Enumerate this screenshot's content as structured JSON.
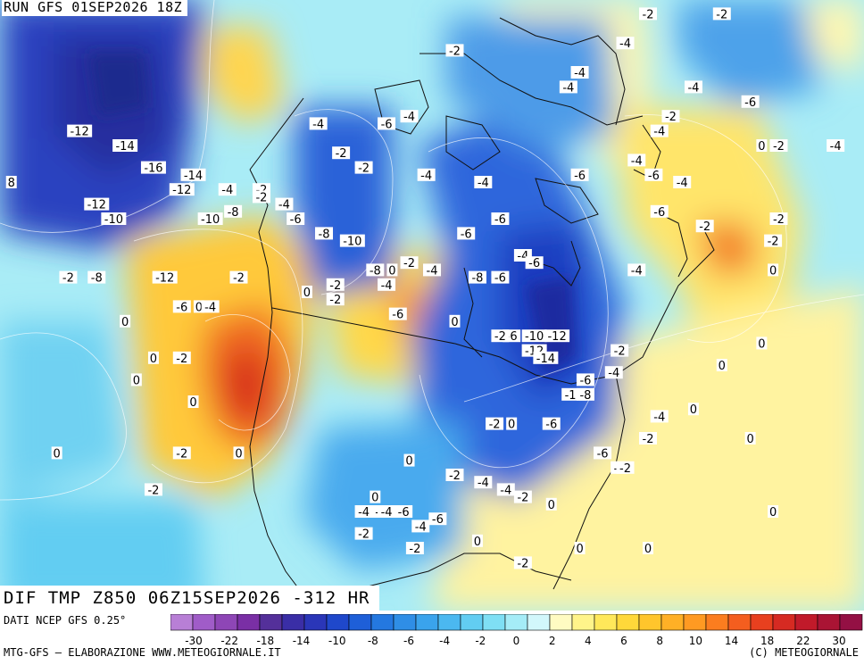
{
  "header": {
    "run_label": "RUN GFS 01SEP2026 18Z"
  },
  "map": {
    "field_label": "DIF TMP Z850 06Z15SEP2026 -312 HR",
    "labels": [
      {
        "t": "-12",
        "lon": -158,
        "lat": 62
      },
      {
        "t": "-14",
        "lon": -150,
        "lat": 60
      },
      {
        "t": "-16",
        "lon": -145,
        "lat": 57
      },
      {
        "t": "-14",
        "lon": -138,
        "lat": 56
      },
      {
        "t": "-12",
        "lon": -140,
        "lat": 54
      },
      {
        "t": "-4",
        "lon": -132,
        "lat": 54
      },
      {
        "t": "-2",
        "lon": -126,
        "lat": 54
      },
      {
        "t": "-12",
        "lon": -155,
        "lat": 52
      },
      {
        "t": "-10",
        "lon": -152,
        "lat": 50
      },
      {
        "t": "-10",
        "lon": -135,
        "lat": 50
      },
      {
        "t": "-8",
        "lon": -131,
        "lat": 51
      },
      {
        "t": "8",
        "lon": -170,
        "lat": 55
      },
      {
        "t": "-2",
        "lon": -160,
        "lat": 42
      },
      {
        "t": "-8",
        "lon": -155,
        "lat": 42
      },
      {
        "t": "-12",
        "lon": -143,
        "lat": 42
      },
      {
        "t": "-2",
        "lon": -130,
        "lat": 42
      },
      {
        "t": "-6",
        "lon": -140,
        "lat": 38
      },
      {
        "t": "0",
        "lon": -137,
        "lat": 38
      },
      {
        "t": "-4",
        "lon": -135,
        "lat": 38
      },
      {
        "t": "0",
        "lon": -150,
        "lat": 36
      },
      {
        "t": "0",
        "lon": -145,
        "lat": 31
      },
      {
        "t": "-2",
        "lon": -140,
        "lat": 31
      },
      {
        "t": "0",
        "lon": -148,
        "lat": 28
      },
      {
        "t": "0",
        "lon": -138,
        "lat": 25
      },
      {
        "t": "-2",
        "lon": -140,
        "lat": 18
      },
      {
        "t": "0",
        "lon": -130,
        "lat": 18
      },
      {
        "t": "0",
        "lon": -162,
        "lat": 18
      },
      {
        "t": "-2",
        "lon": -145,
        "lat": 13
      },
      {
        "t": "-4",
        "lon": -116,
        "lat": 63
      },
      {
        "t": "-6",
        "lon": -104,
        "lat": 63
      },
      {
        "t": "-4",
        "lon": -100,
        "lat": 64
      },
      {
        "t": "-2",
        "lon": -92,
        "lat": 73
      },
      {
        "t": "-4",
        "lon": -70,
        "lat": 70
      },
      {
        "t": "-4",
        "lon": -62,
        "lat": 74
      },
      {
        "t": "-2",
        "lon": -58,
        "lat": 78
      },
      {
        "t": "-2",
        "lon": -45,
        "lat": 78
      },
      {
        "t": "-4",
        "lon": -50,
        "lat": 68
      },
      {
        "t": "-6",
        "lon": -40,
        "lat": 66
      },
      {
        "t": "-2",
        "lon": -54,
        "lat": 64
      },
      {
        "t": "-4",
        "lon": -56,
        "lat": 62
      },
      {
        "t": "0",
        "lon": -38,
        "lat": 60
      },
      {
        "t": "-2",
        "lon": -35,
        "lat": 60
      },
      {
        "t": "-4",
        "lon": -25,
        "lat": 60
      },
      {
        "t": "-4",
        "lon": -72,
        "lat": 68
      },
      {
        "t": "-4",
        "lon": -60,
        "lat": 58
      },
      {
        "t": "-6",
        "lon": -70,
        "lat": 56
      },
      {
        "t": "-6",
        "lon": -57,
        "lat": 56
      },
      {
        "t": "-4",
        "lon": -52,
        "lat": 55
      },
      {
        "t": "-6",
        "lon": -56,
        "lat": 51
      },
      {
        "t": "-2",
        "lon": -48,
        "lat": 49
      },
      {
        "t": "-2",
        "lon": -35,
        "lat": 50
      },
      {
        "t": "-2",
        "lon": -36,
        "lat": 47
      },
      {
        "t": "0",
        "lon": -36,
        "lat": 43
      },
      {
        "t": "-2",
        "lon": -126,
        "lat": 53
      },
      {
        "t": "-4",
        "lon": -122,
        "lat": 52
      },
      {
        "t": "-2",
        "lon": -112,
        "lat": 59
      },
      {
        "t": "-2",
        "lon": -108,
        "lat": 57
      },
      {
        "t": "-4",
        "lon": -97,
        "lat": 56
      },
      {
        "t": "-4",
        "lon": -87,
        "lat": 55
      },
      {
        "t": "-6",
        "lon": -120,
        "lat": 50
      },
      {
        "t": "-8",
        "lon": -115,
        "lat": 48
      },
      {
        "t": "-10",
        "lon": -110,
        "lat": 47
      },
      {
        "t": "-6",
        "lon": -84,
        "lat": 50
      },
      {
        "t": "-6",
        "lon": -90,
        "lat": 48
      },
      {
        "t": "-4",
        "lon": -80,
        "lat": 45
      },
      {
        "t": "-6",
        "lon": -78,
        "lat": 44
      },
      {
        "t": "-2",
        "lon": -100,
        "lat": 44
      },
      {
        "t": "-4",
        "lon": -96,
        "lat": 43
      },
      {
        "t": "-8",
        "lon": -106,
        "lat": 43
      },
      {
        "t": "0",
        "lon": -103,
        "lat": 43
      },
      {
        "t": "-8",
        "lon": -88,
        "lat": 42
      },
      {
        "t": "-6",
        "lon": -84,
        "lat": 42
      },
      {
        "t": "-4",
        "lon": -60,
        "lat": 43
      },
      {
        "t": "-2",
        "lon": -113,
        "lat": 41
      },
      {
        "t": "-2",
        "lon": -113,
        "lat": 39
      },
      {
        "t": "0",
        "lon": -118,
        "lat": 40
      },
      {
        "t": "-4",
        "lon": -104,
        "lat": 41
      },
      {
        "t": "-6",
        "lon": -102,
        "lat": 37
      },
      {
        "t": "0",
        "lon": -92,
        "lat": 36
      },
      {
        "t": "-12",
        "lon": -74,
        "lat": 34
      },
      {
        "t": "-10",
        "lon": -78,
        "lat": 34
      },
      {
        "t": "-6",
        "lon": -82,
        "lat": 34
      },
      {
        "t": "-2",
        "lon": -84,
        "lat": 34
      },
      {
        "t": "-12",
        "lon": -78,
        "lat": 32
      },
      {
        "t": "-14",
        "lon": -76,
        "lat": 31
      },
      {
        "t": "-2",
        "lon": -63,
        "lat": 32
      },
      {
        "t": "-4",
        "lon": -64,
        "lat": 29
      },
      {
        "t": "-6",
        "lon": -69,
        "lat": 28
      },
      {
        "t": "-10",
        "lon": -71,
        "lat": 26
      },
      {
        "t": "-8",
        "lon": -69,
        "lat": 26
      },
      {
        "t": "-4",
        "lon": -56,
        "lat": 23
      },
      {
        "t": "-2",
        "lon": -85,
        "lat": 22
      },
      {
        "t": "0",
        "lon": -82,
        "lat": 22
      },
      {
        "t": "-6",
        "lon": -75,
        "lat": 22
      },
      {
        "t": "-6",
        "lon": -66,
        "lat": 18
      },
      {
        "t": "-4",
        "lon": -63,
        "lat": 16
      },
      {
        "t": "-2",
        "lon": -62,
        "lat": 16
      },
      {
        "t": "0",
        "lon": -100,
        "lat": 17
      },
      {
        "t": "-2",
        "lon": -92,
        "lat": 15
      },
      {
        "t": "-4",
        "lon": -87,
        "lat": 14
      },
      {
        "t": "-4",
        "lon": -83,
        "lat": 13
      },
      {
        "t": "-2",
        "lon": -80,
        "lat": 12
      },
      {
        "t": "0",
        "lon": -75,
        "lat": 11
      },
      {
        "t": "-4",
        "lon": -108,
        "lat": 10
      },
      {
        "t": "-2",
        "lon": -105,
        "lat": 10
      },
      {
        "t": "-6",
        "lon": -101,
        "lat": 10
      },
      {
        "t": "-4",
        "lon": -104,
        "lat": 10
      },
      {
        "t": "0",
        "lon": -106,
        "lat": 12
      },
      {
        "t": "-6",
        "lon": -95,
        "lat": 9
      },
      {
        "t": "-4",
        "lon": -98,
        "lat": 8
      },
      {
        "t": "-2",
        "lon": -108,
        "lat": 7
      },
      {
        "t": "-2",
        "lon": -99,
        "lat": 5
      },
      {
        "t": "0",
        "lon": -88,
        "lat": 6
      },
      {
        "t": "0",
        "lon": -70,
        "lat": 5
      },
      {
        "t": "-2",
        "lon": -80,
        "lat": 3
      },
      {
        "t": "0",
        "lon": -58,
        "lat": 5
      },
      {
        "t": "0",
        "lon": -45,
        "lat": 30
      },
      {
        "t": "0",
        "lon": -38,
        "lat": 33
      },
      {
        "t": "0",
        "lon": -40,
        "lat": 20
      },
      {
        "t": "0",
        "lon": -50,
        "lat": 24
      },
      {
        "t": "0",
        "lon": -36,
        "lat": 10
      },
      {
        "t": "-2",
        "lon": -58,
        "lat": 20
      }
    ]
  },
  "colorbar": {
    "colors": [
      "#b87fd6",
      "#a05cc8",
      "#8e46b6",
      "#7a2fa5",
      "#54309a",
      "#3a2ea6",
      "#2a36b8",
      "#1f48cb",
      "#1e5fd8",
      "#2478e0",
      "#2f8ee6",
      "#3aa3ec",
      "#4bb8f0",
      "#62cdf2",
      "#7fdff4",
      "#a5ecf7",
      "#d2f7fb",
      "#fffbc2",
      "#fff48a",
      "#ffe85a",
      "#ffd83a",
      "#ffc52c",
      "#ffb026",
      "#ff9a22",
      "#fb7d1f",
      "#f45e1f",
      "#e8401f",
      "#d62a22",
      "#c11a2a",
      "#aa1434",
      "#941044"
    ],
    "tick_labels": [
      "-30",
      "-22",
      "-18",
      "-14",
      "-10",
      "-8",
      "-6",
      "-4",
      "-2",
      "0",
      "2",
      "4",
      "6",
      "8",
      "10",
      "14",
      "18",
      "22",
      "30"
    ]
  },
  "footer": {
    "source_label": "DATI NCEP GFS 0.25°",
    "credit_left": "MTG-GFS — ELABORAZIONE WWW.METEOGIORNALE.IT",
    "credit_right": "(C) METEOGIORNALE"
  }
}
